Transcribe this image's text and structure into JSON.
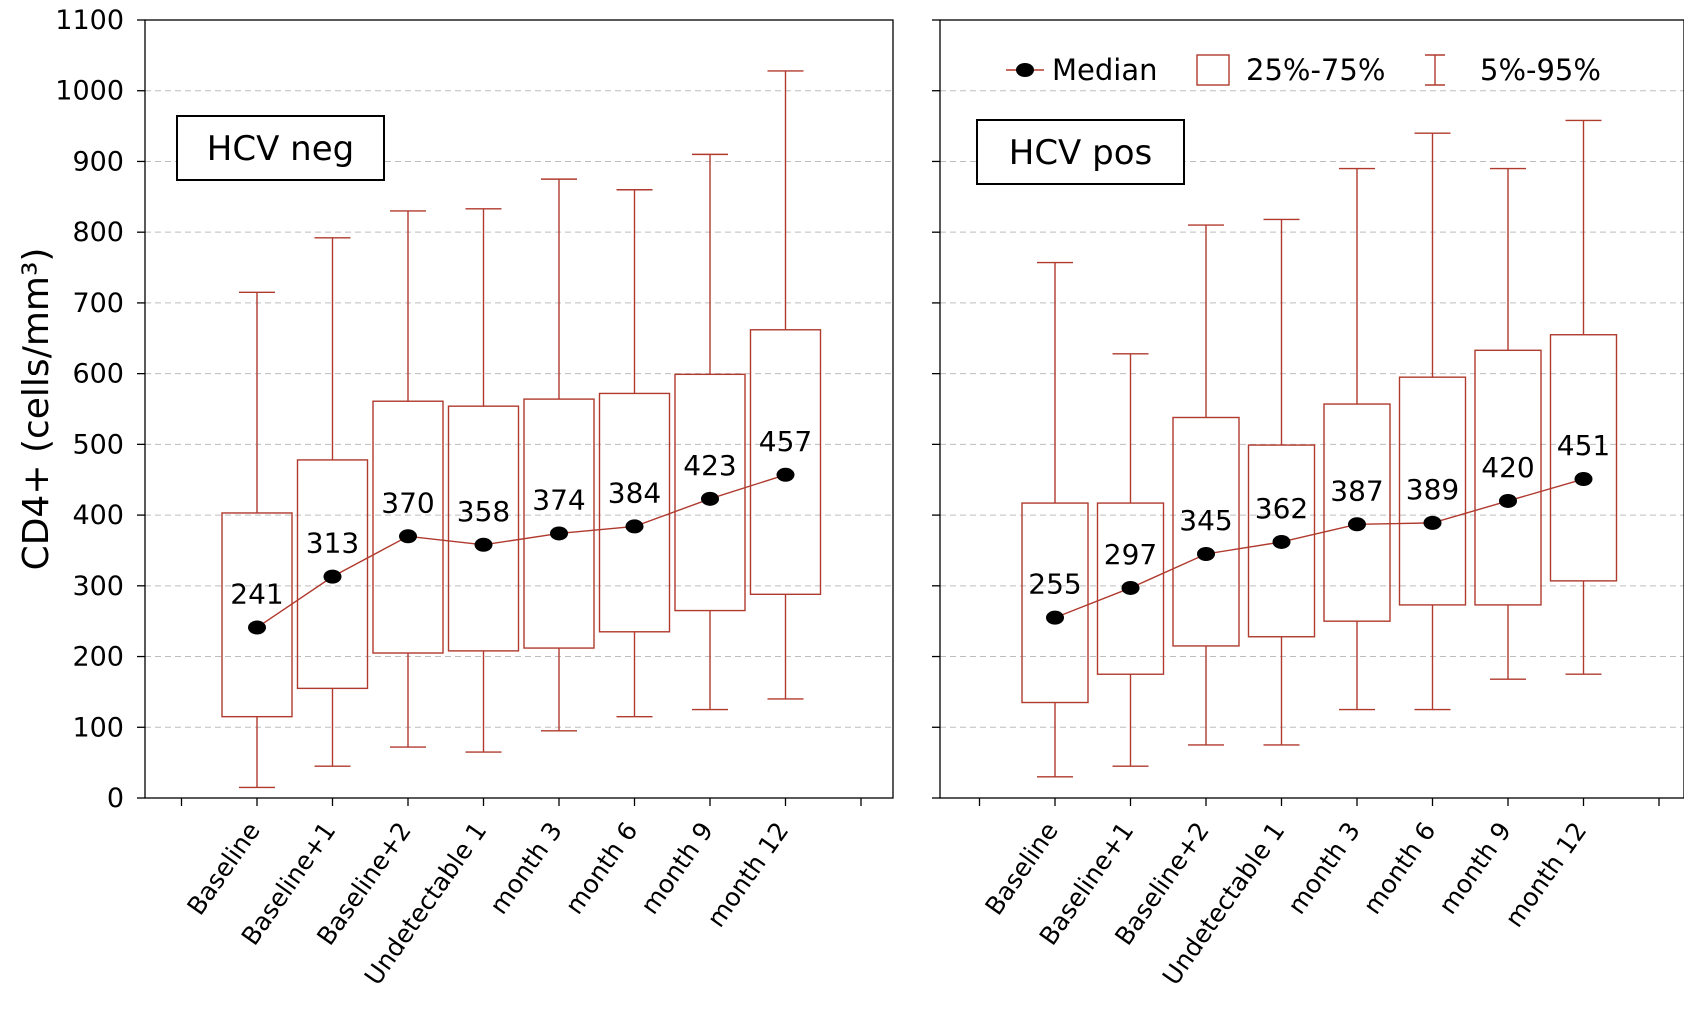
{
  "chart_data": {
    "type": "box",
    "ylabel": "CD4+ (cells/mm³)",
    "ylim": [
      0,
      1100
    ],
    "yticks": [
      0,
      100,
      200,
      300,
      400,
      500,
      600,
      700,
      800,
      900,
      1000,
      1100
    ],
    "grid": "horizontal dashed",
    "box_color": "#b03a2e",
    "legend": {
      "placement": "top (right panel)",
      "items": [
        {
          "label": "Median",
          "kind": "median"
        },
        {
          "label": "25%-75%",
          "kind": "box"
        },
        {
          "label": "5%-95%",
          "kind": "whisker"
        }
      ]
    },
    "categories": [
      "Baseline",
      "Baseline+1",
      "Baseline+2",
      "Undetectable 1",
      "month 3",
      "month 6",
      "month 9",
      "month 12"
    ],
    "panels": [
      {
        "title": "HCV neg",
        "median": [
          241,
          313,
          370,
          358,
          374,
          384,
          423,
          457
        ],
        "median_labels": [
          "241",
          "313",
          "370",
          "358",
          "374",
          "384",
          "423",
          "457"
        ],
        "q1": [
          115,
          155,
          205,
          208,
          212,
          235,
          265,
          288
        ],
        "q3": [
          403,
          478,
          561,
          554,
          564,
          572,
          599,
          662
        ],
        "p5": [
          15,
          45,
          72,
          65,
          95,
          115,
          125,
          140
        ],
        "p95": [
          715,
          792,
          830,
          833,
          875,
          860,
          910,
          1028
        ]
      },
      {
        "title": "HCV pos",
        "median": [
          255,
          297,
          345,
          362,
          387,
          389,
          420,
          451
        ],
        "median_labels": [
          "255",
          "297",
          "345",
          "362",
          "387",
          "389",
          "420",
          "451"
        ],
        "q1": [
          135,
          175,
          215,
          228,
          250,
          273,
          273,
          307
        ],
        "q3": [
          417,
          417,
          538,
          499,
          557,
          595,
          633,
          655
        ],
        "p5": [
          30,
          45,
          75,
          75,
          125,
          125,
          168,
          175
        ],
        "p95": [
          757,
          628,
          810,
          818,
          890,
          940,
          890,
          958
        ]
      }
    ]
  }
}
